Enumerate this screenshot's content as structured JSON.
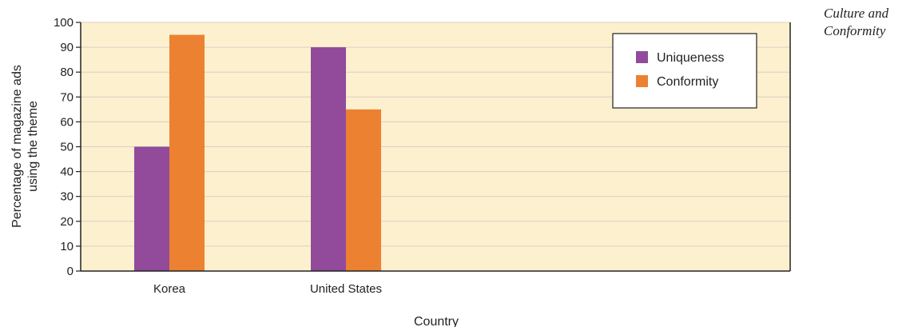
{
  "caption": {
    "line1": "Culture and",
    "line2": "Conformity"
  },
  "colors": {
    "plot_background": "#fdf0cf",
    "grid": "#d9cfc0",
    "uniqueness": "#924a9b",
    "conformity": "#ec8131"
  },
  "chart_data": {
    "type": "bar",
    "categories": [
      "Korea",
      "United States"
    ],
    "series": [
      {
        "name": "Uniqueness",
        "values": [
          50,
          90
        ],
        "color": "#924a9b"
      },
      {
        "name": "Conformity",
        "values": [
          95,
          65
        ],
        "color": "#ec8131"
      }
    ],
    "xlabel": "Country",
    "ylabel": [
      "Percentage of magazine ads",
      "using the theme"
    ],
    "ylim": [
      0,
      100
    ],
    "yticks": [
      0,
      10,
      20,
      30,
      40,
      50,
      60,
      70,
      80,
      90,
      100
    ],
    "grid": true,
    "legend": "top-right"
  }
}
